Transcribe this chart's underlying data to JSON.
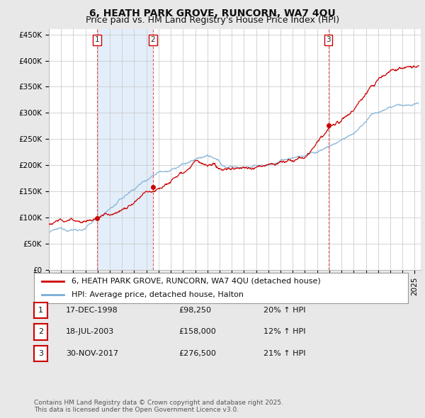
{
  "title": "6, HEATH PARK GROVE, RUNCORN, WA7 4QU",
  "subtitle": "Price paid vs. HM Land Registry's House Price Index (HPI)",
  "ylim": [
    0,
    460000
  ],
  "yticks": [
    0,
    50000,
    100000,
    150000,
    200000,
    250000,
    300000,
    350000,
    400000,
    450000
  ],
  "ytick_labels": [
    "£0",
    "£50K",
    "£100K",
    "£150K",
    "£200K",
    "£250K",
    "£300K",
    "£350K",
    "£400K",
    "£450K"
  ],
  "background_color": "#e8e8e8",
  "plot_bg_color": "#ffffff",
  "grid_color": "#cccccc",
  "sale_color": "#cc0000",
  "hpi_color": "#7aadd4",
  "hpi_fill_color": "#d0e4f4",
  "shade_color": "#d8e8f8",
  "sale_label": "6, HEATH PARK GROVE, RUNCORN, WA7 4QU (detached house)",
  "hpi_label": "HPI: Average price, detached house, Halton",
  "sales": [
    {
      "date_num": 1998.96,
      "price": 98250,
      "label": "1"
    },
    {
      "date_num": 2003.54,
      "price": 158000,
      "label": "2"
    },
    {
      "date_num": 2017.92,
      "price": 276500,
      "label": "3"
    }
  ],
  "transaction_table": [
    {
      "num": "1",
      "date": "17-DEC-1998",
      "price": "£98,250",
      "hpi": "20% ↑ HPI"
    },
    {
      "num": "2",
      "date": "18-JUL-2003",
      "price": "£158,000",
      "hpi": "12% ↑ HPI"
    },
    {
      "num": "3",
      "date": "30-NOV-2017",
      "price": "£276,500",
      "hpi": "21% ↑ HPI"
    }
  ],
  "footer": "Contains HM Land Registry data © Crown copyright and database right 2025.\nThis data is licensed under the Open Government Licence v3.0.",
  "title_fontsize": 10,
  "subtitle_fontsize": 9,
  "tick_fontsize": 7.5,
  "legend_fontsize": 8,
  "table_fontsize": 8,
  "footer_fontsize": 6.5
}
